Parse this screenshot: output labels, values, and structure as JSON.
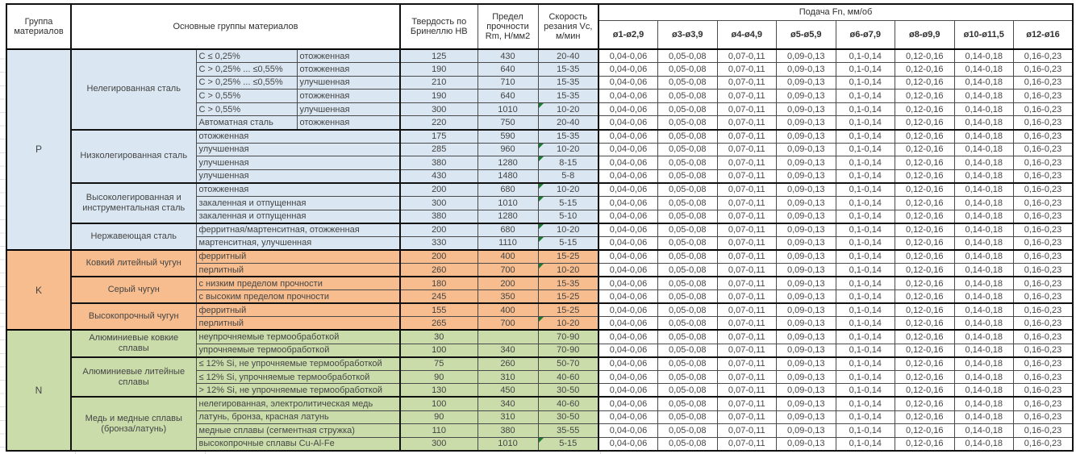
{
  "table": {
    "header": {
      "group_col": "Группа материалов",
      "materials_col": "Основные группы материалов",
      "hardness_col": "Твердость по Бринеллю HB",
      "strength_col": "Предел прочности Rm, Н/мм2",
      "speed_col": "Скорость резания Vc, м/мин",
      "feed_col": "Подача Fn, мм/об",
      "feed_diameters": [
        "ø1-ø2,9",
        "ø3-ø3,9",
        "ø4-ø4,9",
        "ø5-ø5,9",
        "ø6-ø7,9",
        "ø8-ø9,9",
        "ø10-ø11,5",
        "ø12-ø16"
      ]
    },
    "feed_values": [
      "0,04-0,06",
      "0,05-0,08",
      "0,07-0,11",
      "0,09-0,13",
      "0,1-0,14",
      "0,12-0,16",
      "0,14-0,18",
      "0,16-0,23"
    ],
    "note_color": "#1e7b34",
    "groups": [
      {
        "code": "P",
        "color": "#dae7f2",
        "subgroups": [
          {
            "name": "Нелегированная сталь",
            "rows": [
              {
                "char": "C ≤ 0,25%",
                "state": "отожженная",
                "hb": "125",
                "rm": "430",
                "vc": "20-40",
                "note": false
              },
              {
                "char": "C > 0,25% ... ≤0,55%",
                "state": "отожженная",
                "hb": "190",
                "rm": "640",
                "vc": "15-35",
                "note": false
              },
              {
                "char": "C > 0,25% ... ≤0,55%",
                "state": "улучшенная",
                "hb": "210",
                "rm": "710",
                "vc": "15-35",
                "note": false
              },
              {
                "char": "C > 0,55%",
                "state": "отожженная",
                "hb": "190",
                "rm": "640",
                "vc": "15-35",
                "note": false
              },
              {
                "char": "C > 0,55%",
                "state": "улучшенная",
                "hb": "300",
                "rm": "1010",
                "vc": "10-20",
                "note": true
              },
              {
                "char": "Автоматная сталь",
                "state": "отожженная",
                "hb": "220",
                "rm": "750",
                "vc": "20-40",
                "note": false
              }
            ]
          },
          {
            "name": "Низколегированная сталь",
            "rows": [
              {
                "label": "отожженная",
                "hb": "175",
                "rm": "590",
                "vc": "15-35",
                "note": false
              },
              {
                "label": "улучшенная",
                "hb": "285",
                "rm": "960",
                "vc": "10-20",
                "note": true
              },
              {
                "label": "улучшенная",
                "hb": "380",
                "rm": "1280",
                "vc": "8-15",
                "note": true
              },
              {
                "label": "улучшенная",
                "hb": "430",
                "rm": "1480",
                "vc": "5-8",
                "note": false
              }
            ]
          },
          {
            "name": "Высоколегированная и инструментальная сталь",
            "rows": [
              {
                "label": "отожженная",
                "hb": "200",
                "rm": "680",
                "vc": "10-20",
                "note": true
              },
              {
                "label": "закаленная и отпущенная",
                "hb": "300",
                "rm": "1010",
                "vc": "5-15",
                "note": true
              },
              {
                "label": "закаленная и отпущенная",
                "hb": "380",
                "rm": "1280",
                "vc": "5-10",
                "note": false
              }
            ]
          },
          {
            "name": "Нержавеющая сталь",
            "rows": [
              {
                "label": "ферритная/мартенситная, отожженная",
                "hb": "200",
                "rm": "680",
                "vc": "10-20",
                "note": true
              },
              {
                "label": "мартенситная, улучшенная",
                "hb": "330",
                "rm": "1110",
                "vc": "5-15",
                "note": true
              }
            ]
          }
        ]
      },
      {
        "code": "K",
        "color": "#f7bd8e",
        "subgroups": [
          {
            "name": "Ковкий литейный чугун",
            "rows": [
              {
                "label": "ферритный",
                "hb": "200",
                "rm": "400",
                "vc": "15-25",
                "note": false
              },
              {
                "label": "перлитный",
                "hb": "260",
                "rm": "700",
                "vc": "10-20",
                "note": true
              }
            ]
          },
          {
            "name": "Серый чугун",
            "rows": [
              {
                "label": "с низким пределом прочности",
                "hb": "180",
                "rm": "200",
                "vc": "15-35",
                "note": false
              },
              {
                "label": "с высоким пределом прочности",
                "hb": "245",
                "rm": "350",
                "vc": "15-25",
                "note": false
              }
            ]
          },
          {
            "name": "Высокопрочный чугун",
            "rows": [
              {
                "label": "ферритный",
                "hb": "155",
                "rm": "400",
                "vc": "15-25",
                "note": false
              },
              {
                "label": "перлитный",
                "hb": "265",
                "rm": "700",
                "vc": "10-20",
                "note": true
              }
            ]
          }
        ]
      },
      {
        "code": "N",
        "color": "#cbdcab",
        "subgroups": [
          {
            "name": "Алюминиевые ковкие сплавы",
            "rows": [
              {
                "label": "неупрочняемые термообработкой",
                "hb": "30",
                "rm": "",
                "vc": "70-90",
                "note": false
              },
              {
                "label": "упрочняемые термообработкой",
                "hb": "100",
                "rm": "340",
                "vc": "70-90",
                "note": false
              }
            ]
          },
          {
            "name": "Алюминиевые литейные сплавы",
            "rows": [
              {
                "label": "≤ 12% Si, не упрочняемые термообработкой",
                "hb": "75",
                "rm": "260",
                "vc": "50-70",
                "note": false
              },
              {
                "label": "≤ 12% Si, упрочняемые термообработкой",
                "hb": "90",
                "rm": "310",
                "vc": "40-60",
                "note": false
              },
              {
                "label": "> 12% Si, не упрочняемые термообработкой",
                "hb": "130",
                "rm": "450",
                "vc": "30-50",
                "note": false
              }
            ]
          },
          {
            "name": "Медь и медные сплавы (бронза/латунь)",
            "rows": [
              {
                "label": "нелегированная, электролитическая медь",
                "hb": "100",
                "rm": "340",
                "vc": "40-60",
                "note": false
              },
              {
                "label": "латунь, бронза, красная латунь",
                "hb": "90",
                "rm": "310",
                "vc": "30-50",
                "note": false
              },
              {
                "label": "медные сплавы (сегментная стружка)",
                "hb": "110",
                "rm": "380",
                "vc": "35-55",
                "note": false
              },
              {
                "label": "высокопрочные сплавы Cu-Al-Fe",
                "hb": "300",
                "rm": "1010",
                "vc": "5-15",
                "note": true
              }
            ]
          }
        ]
      }
    ]
  }
}
